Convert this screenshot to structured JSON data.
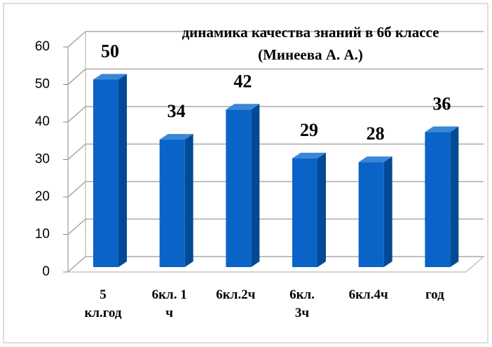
{
  "chart_data": {
    "type": "bar3d",
    "title": "динамика качества знаний в 6б классе\n(Минеева А. А.)",
    "categories": [
      "5\nкл.год",
      "6кл. 1\nч",
      "6кл.2ч",
      "6кл.\n3ч",
      "6кл.4ч",
      "год"
    ],
    "values": [
      50,
      34,
      42,
      29,
      28,
      36
    ],
    "color": "#0a64c8",
    "ylim": [
      0,
      60
    ],
    "yticks": [
      0,
      10,
      20,
      30,
      40,
      50,
      60
    ],
    "grid": true
  }
}
